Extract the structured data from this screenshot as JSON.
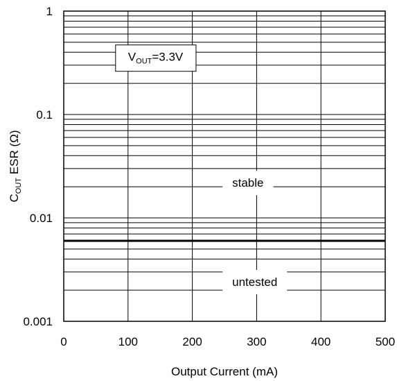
{
  "chart_data": {
    "type": "line",
    "title": "",
    "xlabel": "Output Current (mA)",
    "ylabel": {
      "main": "C",
      "sub": "OUT",
      "rest": " ESR (Ω)"
    },
    "x_scale": "linear",
    "y_scale": "log",
    "xlim": [
      0,
      500
    ],
    "ylim": [
      0.001,
      1
    ],
    "x_ticks": [
      0,
      100,
      200,
      300,
      400,
      500
    ],
    "x_tick_labels": [
      "0",
      "100",
      "200",
      "300",
      "400",
      "500"
    ],
    "y_ticks": [
      0.001,
      0.01,
      0.1,
      1
    ],
    "y_tick_labels": [
      "0.001",
      "0.01",
      "0.1",
      "1"
    ],
    "grid": true,
    "series": [
      {
        "x": [
          0,
          500
        ],
        "y": [
          0.006,
          0.006
        ]
      }
    ],
    "annotations": {
      "condition": {
        "v": "V",
        "sub": "OUT",
        "rest": "=3.3V",
        "x": 100,
        "y": 0.33
      },
      "stable": {
        "text": "stable",
        "x": 262,
        "y": 0.02
      },
      "untested": {
        "text": "untested",
        "x": 262,
        "y": 0.0022
      }
    },
    "line_color": "#000000"
  }
}
